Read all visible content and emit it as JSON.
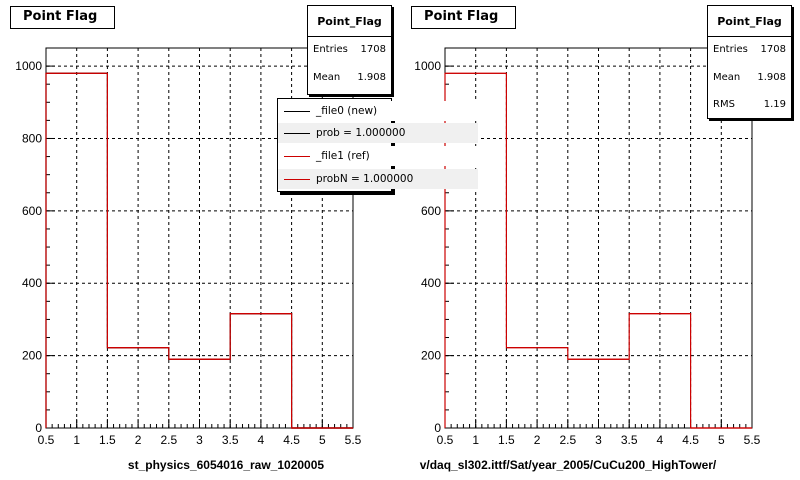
{
  "colors": {
    "new": "#000000",
    "ref": "#cc0000",
    "grid": "#000000"
  },
  "left_panel": {
    "title": "Point Flag",
    "xlabel": "st_physics_6054016_raw_1020005",
    "stats": {
      "name": "Point_Flag",
      "rows": [
        {
          "label": "Entries",
          "value": "1708"
        },
        {
          "label": "Mean",
          "value": "1.908"
        }
      ]
    },
    "legend": [
      {
        "text": "_file0 (new)",
        "color": "#000000"
      },
      {
        "text": "prob = 1.000000",
        "color": "#000000"
      },
      {
        "text": "_file1 (ref)",
        "color": "#cc0000"
      },
      {
        "text": "probN = 1.000000",
        "color": "#cc0000"
      }
    ]
  },
  "right_panel": {
    "title": "Point Flag",
    "xlabel": "v/daq_sl302.ittf/Sat/year_2005/CuCu200_HighTower/",
    "stats": {
      "name": "Point_Flag",
      "rows": [
        {
          "label": "Entries",
          "value": "1708"
        },
        {
          "label": "Mean",
          "value": "1.908"
        },
        {
          "label": "RMS",
          "value": "1.19"
        }
      ]
    }
  },
  "chart_data": [
    {
      "type": "bar",
      "title": "Point Flag",
      "xlabel": "st_physics_6054016_raw_1020005",
      "ylabel": "",
      "xlim": [
        0.5,
        5.5
      ],
      "ylim": [
        0,
        1050
      ],
      "xticks": [
        0.5,
        1,
        1.5,
        2,
        2.5,
        3,
        3.5,
        4,
        4.5,
        5,
        5.5
      ],
      "xtick_labels": [
        "0.5",
        "1",
        "1.5",
        "2",
        "2.5",
        "3",
        "3.5",
        "4",
        "4.5",
        "5",
        "5.5"
      ],
      "yticks": [
        0,
        200,
        400,
        600,
        800,
        1000
      ],
      "ytick_labels": [
        "0",
        "200",
        "400",
        "600",
        "800",
        "1000"
      ],
      "grid": true,
      "bin_edges": [
        0.5,
        1.5,
        2.5,
        3.5,
        4.5,
        5.5
      ],
      "series": [
        {
          "name": "_file0 (new)",
          "color": "#000000",
          "values": [
            980,
            222,
            190,
            316,
            0
          ]
        },
        {
          "name": "_file1 (ref)",
          "color": "#cc0000",
          "values": [
            980,
            222,
            190,
            316,
            0
          ]
        }
      ]
    },
    {
      "type": "bar",
      "title": "Point Flag",
      "xlabel": "v/daq_sl302.ittf/Sat/year_2005/CuCu200_HighTower/",
      "ylabel": "",
      "xlim": [
        0.5,
        5.5
      ],
      "ylim": [
        0,
        1050
      ],
      "xticks": [
        0.5,
        1,
        1.5,
        2,
        2.5,
        3,
        3.5,
        4,
        4.5,
        5,
        5.5
      ],
      "xtick_labels": [
        "0.5",
        "1",
        "1.5",
        "2",
        "2.5",
        "3",
        "3.5",
        "4",
        "4.5",
        "5",
        "5.5"
      ],
      "yticks": [
        0,
        200,
        400,
        600,
        800,
        1000
      ],
      "ytick_labels": [
        "0",
        "200",
        "400",
        "600",
        "800",
        "1000"
      ],
      "grid": true,
      "bin_edges": [
        0.5,
        1.5,
        2.5,
        3.5,
        4.5,
        5.5
      ],
      "series": [
        {
          "name": "",
          "color": "#cc0000",
          "values": [
            980,
            222,
            190,
            316,
            0
          ]
        }
      ]
    }
  ]
}
